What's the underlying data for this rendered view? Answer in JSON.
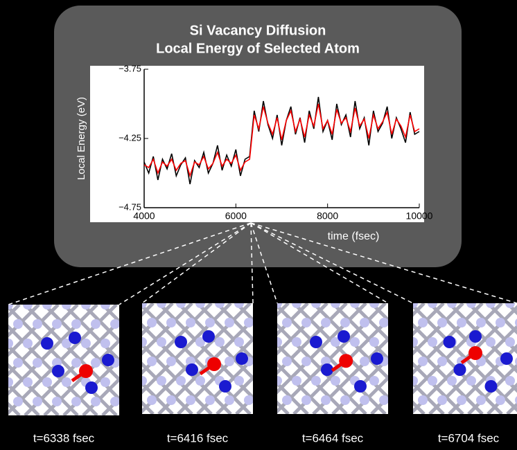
{
  "chart_data": {
    "type": "line",
    "title": "Si Vacancy Diffusion",
    "subtitle": "Local Energy of Selected Atom",
    "x_label": "time (fsec)",
    "y_label": "Local Energy  (eV)",
    "xlim": [
      4000,
      10000
    ],
    "ylim": [
      -4.75,
      -3.75
    ],
    "xticks": [
      4000,
      6000,
      8000,
      10000
    ],
    "yticks": [
      {
        "value": -4.75,
        "label": "−4.75"
      },
      {
        "value": -4.25,
        "label": "−4.25"
      },
      {
        "value": -3.75,
        "label": "−3.75"
      }
    ],
    "x": [
      4000,
      4100,
      4200,
      4300,
      4400,
      4500,
      4600,
      4700,
      4800,
      4900,
      5000,
      5100,
      5200,
      5300,
      5400,
      5500,
      5600,
      5700,
      5800,
      5900,
      6000,
      6100,
      6200,
      6300,
      6400,
      6500,
      6600,
      6700,
      6800,
      6900,
      7000,
      7100,
      7200,
      7300,
      7400,
      7500,
      7600,
      7700,
      7800,
      7900,
      8000,
      8100,
      8200,
      8300,
      8400,
      8500,
      8600,
      8700,
      8800,
      8900,
      9000,
      9100,
      9200,
      9300,
      9400,
      9500,
      9600,
      9700,
      9800,
      9900,
      10000
    ],
    "series": [
      {
        "color": "#000000",
        "values": [
          -4.42,
          -4.5,
          -4.38,
          -4.55,
          -4.4,
          -4.47,
          -4.36,
          -4.52,
          -4.44,
          -4.39,
          -4.58,
          -4.41,
          -4.46,
          -4.35,
          -4.5,
          -4.43,
          -4.3,
          -4.48,
          -4.37,
          -4.45,
          -4.33,
          -4.52,
          -4.4,
          -4.38,
          -4.05,
          -4.2,
          -3.98,
          -4.15,
          -4.25,
          -4.08,
          -4.3,
          -4.12,
          -4.02,
          -4.22,
          -4.1,
          -4.28,
          -4.05,
          -4.18,
          -3.95,
          -4.2,
          -4.12,
          -4.26,
          -4.0,
          -4.15,
          -4.08,
          -4.24,
          -3.98,
          -4.18,
          -4.1,
          -4.3,
          -4.05,
          -4.2,
          -4.14,
          -4.02,
          -4.25,
          -4.1,
          -4.18,
          -4.28,
          -4.06,
          -4.22,
          -4.2
        ]
      },
      {
        "color": "#ff0000",
        "values": [
          -4.44,
          -4.46,
          -4.4,
          -4.5,
          -4.42,
          -4.45,
          -4.4,
          -4.48,
          -4.43,
          -4.41,
          -4.52,
          -4.42,
          -4.44,
          -4.38,
          -4.47,
          -4.43,
          -4.35,
          -4.45,
          -4.4,
          -4.43,
          -4.37,
          -4.48,
          -4.42,
          -4.4,
          -4.08,
          -4.18,
          -4.02,
          -4.14,
          -4.22,
          -4.1,
          -4.26,
          -4.12,
          -4.05,
          -4.2,
          -4.11,
          -4.24,
          -4.08,
          -4.16,
          -4.0,
          -4.18,
          -4.12,
          -4.22,
          -4.04,
          -4.14,
          -4.1,
          -4.2,
          -4.03,
          -4.16,
          -4.11,
          -4.25,
          -4.08,
          -4.18,
          -4.13,
          -4.06,
          -4.22,
          -4.11,
          -4.16,
          -4.24,
          -4.08,
          -4.2,
          -4.18
        ]
      }
    ],
    "grid": false
  },
  "snapshots": [
    "t=6338 fsec",
    "t=6416 fsec",
    "t=6464 fsec",
    "t=6704 fsec"
  ]
}
